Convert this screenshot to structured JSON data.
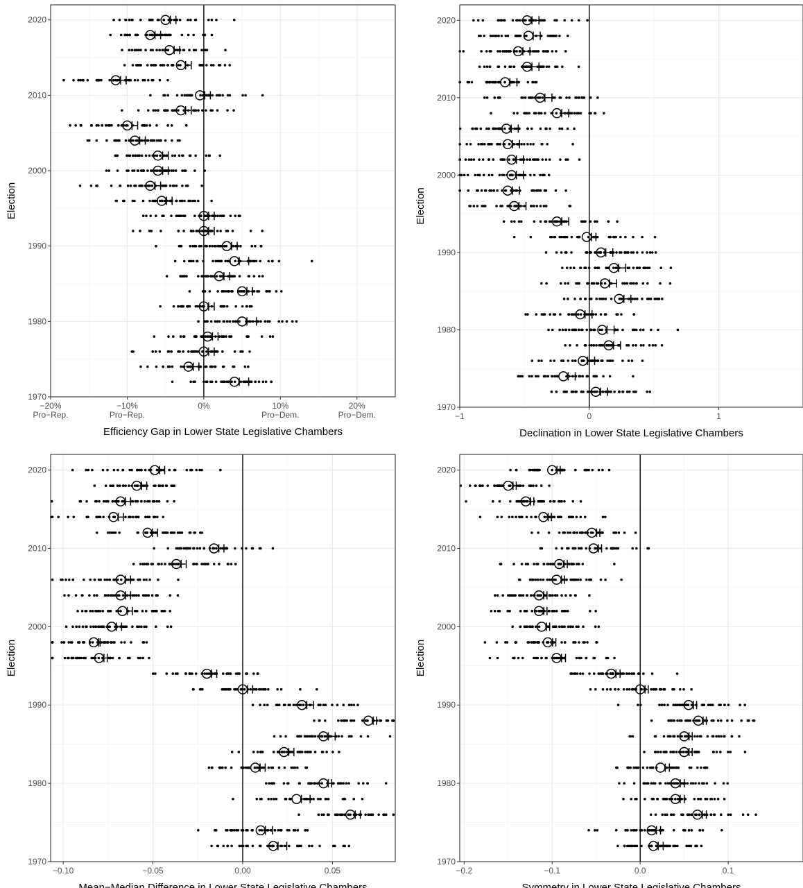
{
  "chart_data": [
    {
      "type": "scatter",
      "xlabel": "Efficiency Gap in Lower State Legislative Chambers",
      "ylabel": "Election",
      "xlim": [
        -0.2,
        0.25
      ],
      "ylim": [
        1970,
        2022
      ],
      "x_ticks": [
        {
          "value": -0.2,
          "labels": [
            "−20%",
            "Pro−Rep."
          ]
        },
        {
          "value": -0.1,
          "labels": [
            "−10%",
            "Pro−Rep."
          ]
        },
        {
          "value": 0,
          "labels": [
            "0%"
          ]
        },
        {
          "value": 0.1,
          "labels": [
            "10%",
            "Pro−Dem."
          ]
        },
        {
          "value": 0.2,
          "labels": [
            "20%",
            "Pro−Dem."
          ]
        }
      ],
      "y_ticks": [
        {
          "value": 1970,
          "label": "1970"
        },
        {
          "value": 1980,
          "label": "1980"
        },
        {
          "value": 1990,
          "label": "1990"
        },
        {
          "value": 2000,
          "label": "2000"
        },
        {
          "value": 2010,
          "label": "2010"
        },
        {
          "value": 2020,
          "label": "2020"
        }
      ],
      "reference_line_x": 0,
      "point_spread": 0.065,
      "years": [
        1972,
        1974,
        1976,
        1978,
        1980,
        1982,
        1984,
        1986,
        1988,
        1990,
        1992,
        1994,
        1996,
        1998,
        2000,
        2002,
        2004,
        2006,
        2008,
        2010,
        2012,
        2014,
        2016,
        2018,
        2020
      ],
      "means": [
        0.04,
        -0.02,
        0.0,
        0.005,
        0.05,
        0.0,
        0.05,
        0.02,
        0.04,
        0.03,
        0.0,
        0.0,
        -0.055,
        -0.07,
        -0.06,
        -0.06,
        -0.09,
        -0.1,
        -0.03,
        -0.005,
        -0.115,
        -0.03,
        -0.045,
        -0.07,
        -0.05
      ],
      "sample_means": [
        0.055,
        -0.01,
        0.01,
        0.015,
        0.065,
        0.01,
        0.06,
        0.03,
        0.055,
        0.04,
        0.01,
        0.01,
        -0.045,
        -0.06,
        -0.05,
        -0.05,
        -0.08,
        -0.09,
        -0.02,
        0.005,
        -0.105,
        -0.02,
        -0.035,
        -0.06,
        -0.04
      ]
    },
    {
      "type": "scatter",
      "xlabel": "Declination in Lower State Legislative Chambers",
      "ylabel": "Election",
      "xlim": [
        -1.0,
        1.65
      ],
      "ylim": [
        1970,
        2022
      ],
      "x_ticks": [
        {
          "value": -1,
          "labels": [
            "−1"
          ]
        },
        {
          "value": 0,
          "labels": [
            "0"
          ]
        },
        {
          "value": 1,
          "labels": [
            "1"
          ]
        }
      ],
      "y_ticks": [
        {
          "value": 1970,
          "label": "1970"
        },
        {
          "value": 1980,
          "label": "1980"
        },
        {
          "value": 1990,
          "label": "1990"
        },
        {
          "value": 2000,
          "label": "2000"
        },
        {
          "value": 2010,
          "label": "2010"
        },
        {
          "value": 2020,
          "label": "2020"
        }
      ],
      "reference_line_x": 0,
      "point_spread": 0.4,
      "years": [
        1972,
        1974,
        1976,
        1978,
        1980,
        1982,
        1984,
        1986,
        1988,
        1990,
        1992,
        1994,
        1996,
        1998,
        2000,
        2002,
        2004,
        2006,
        2008,
        2010,
        2012,
        2014,
        2016,
        2018,
        2020
      ],
      "means": [
        0.05,
        -0.2,
        -0.05,
        0.15,
        0.1,
        -0.07,
        0.23,
        0.12,
        0.19,
        0.09,
        -0.02,
        -0.25,
        -0.58,
        -0.63,
        -0.6,
        -0.6,
        -0.63,
        -0.64,
        -0.25,
        -0.38,
        -0.65,
        -0.48,
        -0.55,
        -0.47,
        -0.48
      ],
      "sample_means": [
        0.12,
        -0.13,
        0.02,
        0.22,
        0.17,
        0.0,
        0.3,
        0.19,
        0.26,
        0.16,
        0.03,
        -0.18,
        -0.51,
        -0.56,
        -0.53,
        -0.53,
        -0.56,
        -0.57,
        -0.18,
        -0.31,
        -0.58,
        -0.41,
        -0.48,
        -0.4,
        -0.41
      ]
    },
    {
      "type": "scatter",
      "xlabel": "Mean−Median Difference in Lower State Legislative Chambers",
      "ylabel": "Election",
      "xlim": [
        -0.107,
        0.085
      ],
      "ylim": [
        1970,
        2022
      ],
      "x_ticks": [
        {
          "value": -0.1,
          "labels": [
            "−0.10"
          ]
        },
        {
          "value": -0.05,
          "labels": [
            "−0.05"
          ]
        },
        {
          "value": 0,
          "labels": [
            "0.00"
          ]
        },
        {
          "value": 0.05,
          "labels": [
            "0.05"
          ]
        }
      ],
      "y_ticks": [
        {
          "value": 1970,
          "label": "1970"
        },
        {
          "value": 1980,
          "label": "1980"
        },
        {
          "value": 1990,
          "label": "1990"
        },
        {
          "value": 2000,
          "label": "2000"
        },
        {
          "value": 2010,
          "label": "2010"
        },
        {
          "value": 2020,
          "label": "2020"
        }
      ],
      "reference_line_x": 0,
      "point_spread": 0.03,
      "years": [
        1972,
        1974,
        1976,
        1978,
        1980,
        1982,
        1984,
        1986,
        1988,
        1990,
        1992,
        1994,
        1996,
        1998,
        2000,
        2002,
        2004,
        2006,
        2008,
        2010,
        2012,
        2014,
        2016,
        2018,
        2020
      ],
      "means": [
        0.017,
        0.01,
        0.06,
        0.03,
        0.045,
        0.007,
        0.023,
        0.045,
        0.07,
        0.033,
        0.0,
        -0.02,
        -0.08,
        -0.083,
        -0.073,
        -0.067,
        -0.068,
        -0.068,
        -0.037,
        -0.016,
        -0.053,
        -0.072,
        -0.068,
        -0.059,
        -0.049
      ],
      "sample_means": [
        0.023,
        0.015,
        0.064,
        0.036,
        0.048,
        0.011,
        0.027,
        0.05,
        0.073,
        0.038,
        0.004,
        -0.016,
        -0.077,
        -0.081,
        -0.069,
        -0.063,
        -0.064,
        -0.064,
        -0.033,
        -0.012,
        -0.049,
        -0.068,
        -0.064,
        -0.055,
        -0.045
      ]
    },
    {
      "type": "scatter",
      "xlabel": "Symmetry in Lower State Legislative Chambers",
      "ylabel": "Election",
      "xlim": [
        -0.205,
        0.185
      ],
      "ylim": [
        1970,
        2022
      ],
      "x_ticks": [
        {
          "value": -0.2,
          "labels": [
            "−0.2"
          ]
        },
        {
          "value": -0.1,
          "labels": [
            "−0.1"
          ]
        },
        {
          "value": 0,
          "labels": [
            "0.0"
          ]
        },
        {
          "value": 0.1,
          "labels": [
            "0.1"
          ]
        }
      ],
      "y_ticks": [
        {
          "value": 1970,
          "label": "1970"
        },
        {
          "value": 1980,
          "label": "1980"
        },
        {
          "value": 1990,
          "label": "1990"
        },
        {
          "value": 2000,
          "label": "2000"
        },
        {
          "value": 2010,
          "label": "2010"
        },
        {
          "value": 2020,
          "label": "2020"
        }
      ],
      "reference_line_x": 0,
      "point_spread": 0.055,
      "years": [
        1972,
        1974,
        1976,
        1978,
        1980,
        1982,
        1984,
        1986,
        1988,
        1990,
        1992,
        1994,
        1996,
        1998,
        2000,
        2002,
        2004,
        2006,
        2008,
        2010,
        2012,
        2014,
        2016,
        2018,
        2020
      ],
      "means": [
        0.015,
        0.013,
        0.065,
        0.04,
        0.04,
        0.023,
        0.05,
        0.05,
        0.066,
        0.055,
        0.0,
        -0.033,
        -0.095,
        -0.105,
        -0.112,
        -0.115,
        -0.115,
        -0.095,
        -0.092,
        -0.053,
        -0.055,
        -0.11,
        -0.13,
        -0.15,
        -0.1
      ],
      "sample_means": [
        0.023,
        0.02,
        0.072,
        0.047,
        0.047,
        0.03,
        0.056,
        0.056,
        0.072,
        0.061,
        0.006,
        -0.026,
        -0.088,
        -0.099,
        -0.106,
        -0.109,
        -0.109,
        -0.089,
        -0.086,
        -0.047,
        -0.049,
        -0.104,
        -0.124,
        -0.144,
        -0.094
      ]
    }
  ]
}
